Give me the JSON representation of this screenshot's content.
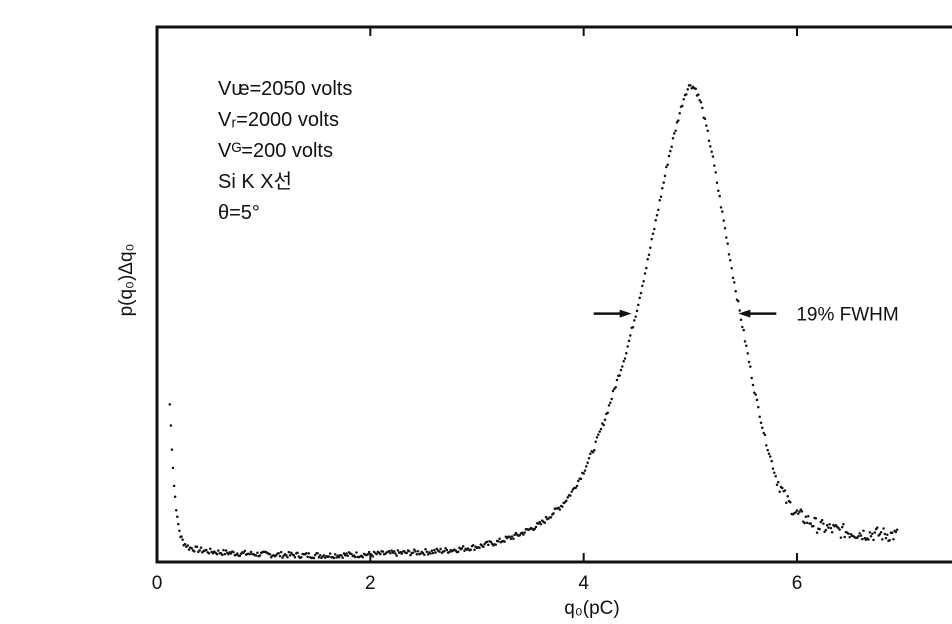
{
  "chart_data": {
    "type": "scatter",
    "xlabel": "q₀(pC)",
    "ylabel": "p(q₀)Δq₀",
    "xlim": [
      0,
      7.5
    ],
    "ylim": [
      0,
      1.12
    ],
    "x_ticks": [
      {
        "value": 0,
        "label": "0"
      },
      {
        "value": 2,
        "label": "2"
      },
      {
        "value": 4,
        "label": "4"
      },
      {
        "value": 6,
        "label": "6"
      }
    ],
    "y_ticks": [],
    "grid": false,
    "legend": "none",
    "annotations": [
      {
        "id": "vf",
        "text": "Vᵫ=2050 volts"
      },
      {
        "id": "vr",
        "text": "Vᵣ=2000 volts"
      },
      {
        "id": "vg",
        "text": "Vᴳ=200  volts"
      },
      {
        "id": "source",
        "text": "Si K X선"
      },
      {
        "id": "theta",
        "text": "θ=5°"
      },
      {
        "id": "fwhm",
        "text": "19% FWHM"
      }
    ],
    "fwhm_marker": {
      "x_left": 4.45,
      "x_right": 5.45,
      "y": 0.52
    },
    "series": [
      {
        "values": [
          [
            0.12,
            0.33
          ],
          [
            0.14,
            0.24
          ],
          [
            0.16,
            0.16
          ],
          [
            0.19,
            0.09
          ],
          [
            0.22,
            0.055
          ],
          [
            0.25,
            0.04
          ],
          [
            0.3,
            0.03
          ],
          [
            0.4,
            0.025
          ],
          [
            0.5,
            0.022
          ],
          [
            0.6,
            0.02
          ],
          [
            0.8,
            0.018
          ],
          [
            1.0,
            0.016
          ],
          [
            1.2,
            0.015
          ],
          [
            1.4,
            0.014
          ],
          [
            1.6,
            0.014
          ],
          [
            1.8,
            0.015
          ],
          [
            2.0,
            0.016
          ],
          [
            2.2,
            0.018
          ],
          [
            2.4,
            0.02
          ],
          [
            2.6,
            0.022
          ],
          [
            2.8,
            0.026
          ],
          [
            3.0,
            0.032
          ],
          [
            3.2,
            0.042
          ],
          [
            3.4,
            0.058
          ],
          [
            3.6,
            0.08
          ],
          [
            3.8,
            0.12
          ],
          [
            3.9,
            0.15
          ],
          [
            4.0,
            0.19
          ],
          [
            4.1,
            0.24
          ],
          [
            4.2,
            0.3
          ],
          [
            4.3,
            0.37
          ],
          [
            4.4,
            0.44
          ],
          [
            4.5,
            0.53
          ],
          [
            4.6,
            0.63
          ],
          [
            4.7,
            0.74
          ],
          [
            4.8,
            0.85
          ],
          [
            4.9,
            0.94
          ],
          [
            4.95,
            0.98
          ],
          [
            5.0,
            1.0
          ],
          [
            5.05,
            0.99
          ],
          [
            5.1,
            0.96
          ],
          [
            5.2,
            0.86
          ],
          [
            5.3,
            0.73
          ],
          [
            5.4,
            0.6
          ],
          [
            5.5,
            0.48
          ],
          [
            5.6,
            0.36
          ],
          [
            5.7,
            0.26
          ],
          [
            5.8,
            0.18
          ],
          [
            5.9,
            0.13
          ],
          [
            6.0,
            0.1
          ],
          [
            6.2,
            0.075
          ],
          [
            6.4,
            0.065
          ],
          [
            6.6,
            0.06
          ],
          [
            6.8,
            0.058
          ],
          [
            6.95,
            0.056
          ]
        ]
      }
    ]
  }
}
